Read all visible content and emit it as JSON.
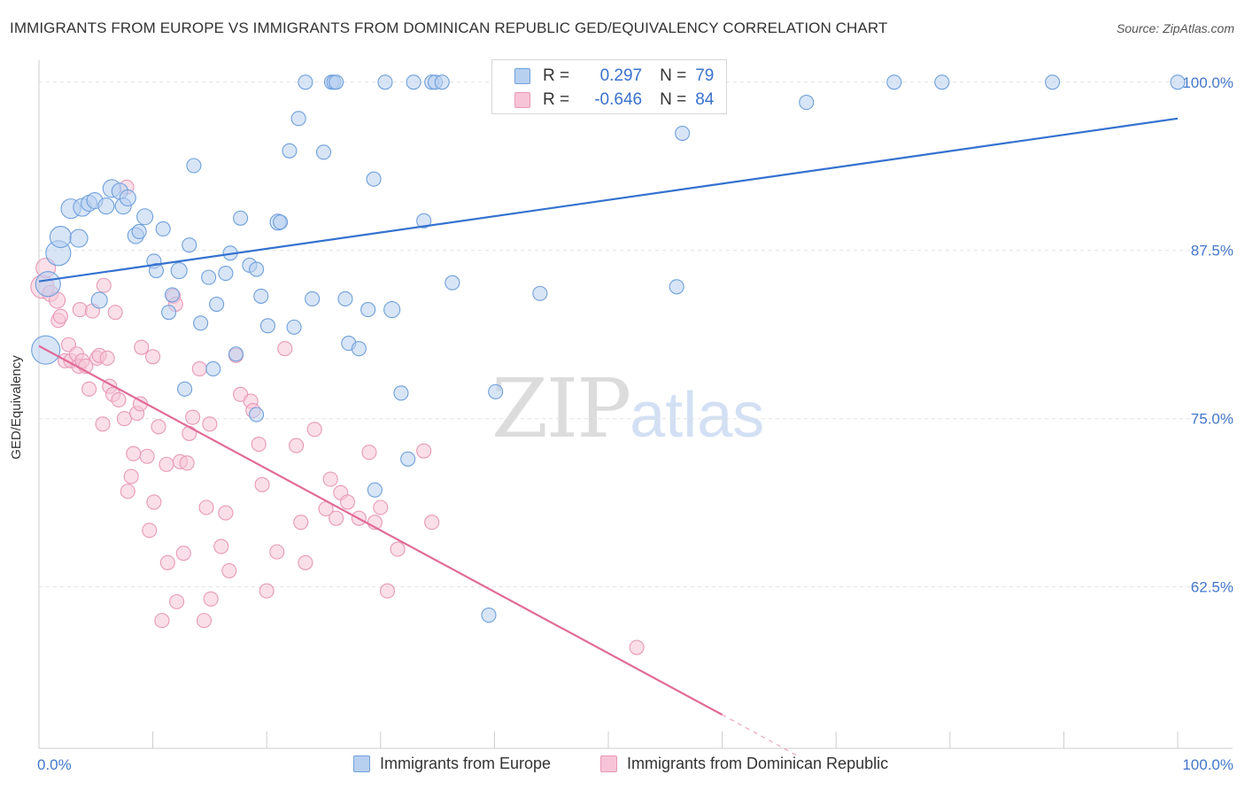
{
  "title": "IMMIGRANTS FROM EUROPE VS IMMIGRANTS FROM DOMINICAN REPUBLIC GED/EQUIVALENCY CORRELATION CHART",
  "source": "Source: ZipAtlas.com",
  "watermark": {
    "zip": "ZIP",
    "atlas": "atlas"
  },
  "colors": {
    "europe": "#6fa0dc",
    "europe_fill": "#b8d0f0",
    "europe_line": "#3472cf",
    "dominican": "#e899b8",
    "dominican_fill": "#f6c4d6",
    "dominican_line": "#e06b98",
    "axis_label": "#4477cc",
    "grid": "#e2e2e2"
  },
  "stats": {
    "europe": {
      "r_label": "R =",
      "r": "0.297",
      "n_label": "N =",
      "n": "79"
    },
    "dominican": {
      "r_label": "R =",
      "r": "-0.646",
      "n_label": "N =",
      "n": "84"
    }
  },
  "chart_data": {
    "type": "scatter",
    "title": "IMMIGRANTS FROM EUROPE VS IMMIGRANTS FROM DOMINICAN REPUBLIC GED/EQUIVALENCY CORRELATION CHART",
    "xlabel": "",
    "ylabel": "GED/Equivalency",
    "xlim": [
      0,
      100
    ],
    "ylim": [
      50.5,
      101.5
    ],
    "x_tick_labels": [
      "0.0%",
      "100.0%"
    ],
    "y_ticks": [
      62.5,
      75.0,
      87.5,
      100.0
    ],
    "y_tick_labels": [
      "62.5%",
      "75.0%",
      "87.5%",
      "100.0%"
    ],
    "grid": true,
    "legend": "bottom",
    "series": [
      {
        "name": "Immigrants from Europe",
        "trend": {
          "x": [
            0,
            100
          ],
          "y": [
            85.2,
            97.3
          ]
        },
        "points": [
          [
            0.6,
            80.1,
            16
          ],
          [
            0.8,
            85.0,
            14
          ],
          [
            1.7,
            87.3,
            14
          ],
          [
            1.9,
            88.5,
            12
          ],
          [
            2.8,
            90.6,
            11
          ],
          [
            3.5,
            88.4,
            10
          ],
          [
            3.8,
            90.7,
            10
          ],
          [
            4.4,
            91.0,
            9
          ],
          [
            4.9,
            91.2,
            9
          ],
          [
            5.9,
            90.8,
            9
          ],
          [
            5.3,
            83.8,
            9
          ],
          [
            6.4,
            92.1,
            10
          ],
          [
            7.1,
            91.9,
            9
          ],
          [
            7.4,
            90.8,
            9
          ],
          [
            7.8,
            91.4,
            9
          ],
          [
            8.5,
            88.6,
            9
          ],
          [
            8.8,
            88.9,
            8
          ],
          [
            9.3,
            90.0,
            9
          ],
          [
            10.1,
            86.7,
            8
          ],
          [
            10.3,
            86.0,
            8
          ],
          [
            10.9,
            89.1,
            8
          ],
          [
            11.4,
            82.9,
            8
          ],
          [
            11.7,
            84.2,
            8
          ],
          [
            12.3,
            86.0,
            9
          ],
          [
            12.8,
            77.2,
            8
          ],
          [
            13.2,
            87.9,
            8
          ],
          [
            13.6,
            93.8,
            8
          ],
          [
            14.2,
            82.1,
            8
          ],
          [
            14.9,
            85.5,
            8
          ],
          [
            15.3,
            78.7,
            8
          ],
          [
            15.6,
            83.5,
            8
          ],
          [
            16.4,
            85.8,
            8
          ],
          [
            16.8,
            87.3,
            8
          ],
          [
            17.3,
            79.8,
            8
          ],
          [
            17.7,
            89.9,
            8
          ],
          [
            18.5,
            86.4,
            8
          ],
          [
            19.1,
            86.1,
            8
          ],
          [
            19.1,
            75.3,
            8
          ],
          [
            19.5,
            84.1,
            8
          ],
          [
            20.1,
            81.9,
            8
          ],
          [
            21.0,
            89.6,
            9
          ],
          [
            21.2,
            89.6,
            8
          ],
          [
            22.0,
            94.9,
            8
          ],
          [
            22.4,
            81.8,
            8
          ],
          [
            22.8,
            97.3,
            8
          ],
          [
            23.4,
            100.0,
            8
          ],
          [
            24.0,
            83.9,
            8
          ],
          [
            25.0,
            94.8,
            8
          ],
          [
            25.7,
            100.0,
            8
          ],
          [
            25.9,
            100.0,
            8
          ],
          [
            26.1,
            100.0,
            8
          ],
          [
            26.9,
            83.9,
            8
          ],
          [
            27.2,
            80.6,
            8
          ],
          [
            28.1,
            80.2,
            8
          ],
          [
            28.9,
            83.1,
            8
          ],
          [
            29.4,
            92.8,
            8
          ],
          [
            29.5,
            69.7,
            8
          ],
          [
            30.4,
            100.0,
            8
          ],
          [
            31.0,
            83.1,
            9
          ],
          [
            31.8,
            76.9,
            8
          ],
          [
            32.4,
            72.0,
            8
          ],
          [
            32.9,
            100.0,
            8
          ],
          [
            33.8,
            89.7,
            8
          ],
          [
            34.5,
            100.0,
            8
          ],
          [
            34.8,
            100.0,
            8
          ],
          [
            35.4,
            100.0,
            8
          ],
          [
            36.3,
            85.1,
            8
          ],
          [
            39.5,
            60.4,
            8
          ],
          [
            40.1,
            77.0,
            8
          ],
          [
            44.0,
            84.3,
            8
          ],
          [
            47.4,
            100.0,
            8
          ],
          [
            53.1,
            100.0,
            8
          ],
          [
            56.0,
            84.8,
            8
          ],
          [
            56.5,
            96.2,
            8
          ],
          [
            67.4,
            98.5,
            8
          ],
          [
            75.1,
            100.0,
            8
          ],
          [
            79.3,
            100.0,
            8
          ],
          [
            89.0,
            100.0,
            8
          ],
          [
            100.0,
            100.0,
            8
          ]
        ]
      },
      {
        "name": "Immigrants from Dominican Republic",
        "trend": {
          "x": [
            0,
            60
          ],
          "y": [
            80.4,
            53.0
          ]
        },
        "trend_dashed": {
          "x": [
            60,
            66.5
          ],
          "y": [
            53.0,
            50.0
          ]
        },
        "points": [
          [
            0.3,
            84.8,
            13
          ],
          [
            0.6,
            86.2,
            11
          ],
          [
            1.0,
            84.3,
            9
          ],
          [
            1.6,
            83.8,
            9
          ],
          [
            1.7,
            82.3,
            8
          ],
          [
            1.9,
            82.6,
            8
          ],
          [
            2.3,
            79.3,
            8
          ],
          [
            2.6,
            80.5,
            8
          ],
          [
            2.8,
            79.3,
            8
          ],
          [
            3.3,
            79.8,
            8
          ],
          [
            3.5,
            78.9,
            8
          ],
          [
            3.6,
            83.1,
            8
          ],
          [
            3.8,
            79.3,
            8
          ],
          [
            4.1,
            78.9,
            8
          ],
          [
            4.4,
            77.2,
            8
          ],
          [
            4.7,
            83.0,
            8
          ],
          [
            5.1,
            79.5,
            8
          ],
          [
            5.3,
            79.7,
            8
          ],
          [
            5.6,
            74.6,
            8
          ],
          [
            5.7,
            84.9,
            8
          ],
          [
            6.0,
            79.5,
            8
          ],
          [
            6.2,
            77.4,
            8
          ],
          [
            6.5,
            76.8,
            8
          ],
          [
            6.7,
            82.9,
            8
          ],
          [
            7.0,
            76.4,
            8
          ],
          [
            7.5,
            75.0,
            8
          ],
          [
            7.7,
            92.2,
            8
          ],
          [
            7.8,
            69.6,
            8
          ],
          [
            8.1,
            70.7,
            8
          ],
          [
            8.3,
            72.4,
            8
          ],
          [
            8.6,
            75.4,
            8
          ],
          [
            8.9,
            76.1,
            8
          ],
          [
            9.0,
            80.3,
            8
          ],
          [
            9.5,
            72.2,
            8
          ],
          [
            9.7,
            66.7,
            8
          ],
          [
            10.0,
            79.6,
            8
          ],
          [
            10.1,
            68.8,
            8
          ],
          [
            10.5,
            74.4,
            8
          ],
          [
            10.8,
            60.0,
            8
          ],
          [
            11.2,
            71.6,
            8
          ],
          [
            11.3,
            64.3,
            8
          ],
          [
            11.8,
            84.1,
            8
          ],
          [
            12.0,
            83.5,
            8
          ],
          [
            12.1,
            61.4,
            8
          ],
          [
            12.4,
            71.8,
            8
          ],
          [
            12.7,
            65.0,
            8
          ],
          [
            13.0,
            71.7,
            8
          ],
          [
            13.2,
            73.9,
            8
          ],
          [
            13.5,
            75.1,
            8
          ],
          [
            14.1,
            78.7,
            8
          ],
          [
            14.5,
            60.0,
            8
          ],
          [
            14.7,
            68.4,
            8
          ],
          [
            15.0,
            74.6,
            8
          ],
          [
            15.1,
            61.6,
            8
          ],
          [
            16.0,
            65.5,
            8
          ],
          [
            16.4,
            68.0,
            8
          ],
          [
            16.7,
            63.7,
            8
          ],
          [
            17.3,
            79.7,
            8
          ],
          [
            17.7,
            76.8,
            8
          ],
          [
            18.6,
            76.3,
            8
          ],
          [
            18.8,
            75.6,
            8
          ],
          [
            19.3,
            73.1,
            8
          ],
          [
            19.6,
            70.1,
            8
          ],
          [
            20.0,
            62.2,
            8
          ],
          [
            20.9,
            65.1,
            8
          ],
          [
            21.6,
            80.2,
            8
          ],
          [
            22.6,
            73.0,
            8
          ],
          [
            23.0,
            67.3,
            8
          ],
          [
            23.4,
            64.3,
            8
          ],
          [
            24.2,
            74.2,
            8
          ],
          [
            25.2,
            68.3,
            8
          ],
          [
            25.6,
            70.5,
            8
          ],
          [
            26.1,
            67.6,
            8
          ],
          [
            26.5,
            69.5,
            8
          ],
          [
            27.1,
            68.8,
            8
          ],
          [
            28.1,
            67.6,
            8
          ],
          [
            29.0,
            72.5,
            8
          ],
          [
            29.5,
            67.3,
            8
          ],
          [
            30.0,
            68.4,
            8
          ],
          [
            30.6,
            62.2,
            8
          ],
          [
            31.5,
            65.3,
            8
          ],
          [
            33.8,
            72.6,
            8
          ],
          [
            34.5,
            67.3,
            8
          ],
          [
            52.5,
            58.0,
            8
          ]
        ]
      }
    ]
  },
  "legend": {
    "europe": "Immigrants from Europe",
    "dominican": "Immigrants from Dominican Republic"
  }
}
